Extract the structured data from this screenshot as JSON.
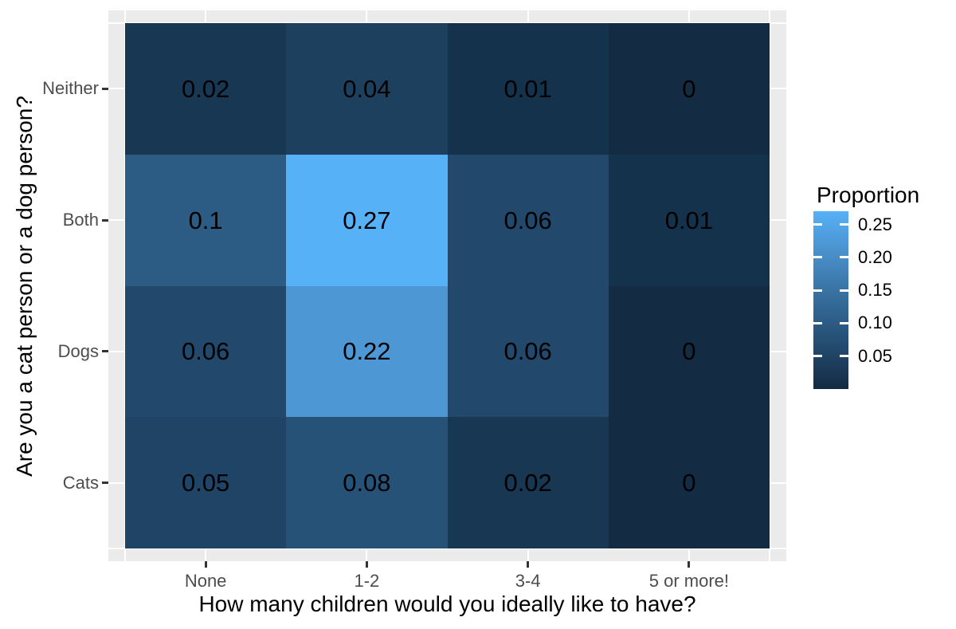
{
  "chart_data": {
    "type": "heatmap",
    "title": "",
    "xlabel": "How many children would you ideally like to have?",
    "ylabel": "Are you a cat person or a dog person?",
    "x_categories": [
      "None",
      "1-2",
      "3-4",
      "5 or more!"
    ],
    "y_categories_top_to_bottom": [
      "Neither",
      "Both",
      "Dogs",
      "Cats"
    ],
    "rows": [
      {
        "y": "Neither",
        "labels": [
          "0.02",
          "0.04",
          "0.01",
          "0"
        ],
        "values": [
          0.02,
          0.04,
          0.01,
          0
        ],
        "colors": [
          "#183753",
          "#1D405F",
          "#15324D",
          "#132B43"
        ]
      },
      {
        "y": "Both",
        "labels": [
          "0.1",
          "0.27",
          "0.06",
          "0.01"
        ],
        "values": [
          0.1,
          0.27,
          0.06,
          0.01
        ],
        "colors": [
          "#2C5B84",
          "#56B1F7",
          "#22486B",
          "#15324D"
        ]
      },
      {
        "y": "Dogs",
        "labels": [
          "0.06",
          "0.22",
          "0.06",
          "0"
        ],
        "values": [
          0.06,
          0.22,
          0.06,
          0
        ],
        "colors": [
          "#22486B",
          "#4D97D4",
          "#22486B",
          "#132B43"
        ]
      },
      {
        "y": "Cats",
        "labels": [
          "0.05",
          "0.08",
          "0.02",
          "0"
        ],
        "values": [
          0.05,
          0.08,
          0.02,
          0
        ],
        "colors": [
          "#1F4465",
          "#275277",
          "#183753",
          "#132B43"
        ]
      }
    ],
    "legend": {
      "title": "Proportion",
      "tick_labels": [
        "0.25",
        "0.20",
        "0.15",
        "0.10",
        "0.05"
      ],
      "tick_values": [
        0.25,
        0.2,
        0.15,
        0.1,
        0.05
      ],
      "domain": [
        0,
        0.27
      ],
      "gradient_low": "#132B43",
      "gradient_high": "#56B1F7",
      "gradient_stops": [
        "#132B43",
        "#244C70",
        "#356C9A",
        "#488EC8",
        "#56B1F7"
      ],
      "position": "right"
    },
    "style": {
      "figure_background": "#FFFFFF",
      "panel_background": "#EBEBEB",
      "grid_line_color": "#FFFFFF",
      "tick_mark_color": "#333333",
      "axis_text_color": "#4D4D4D",
      "title_text_color": "#000000",
      "grid": "on"
    }
  }
}
